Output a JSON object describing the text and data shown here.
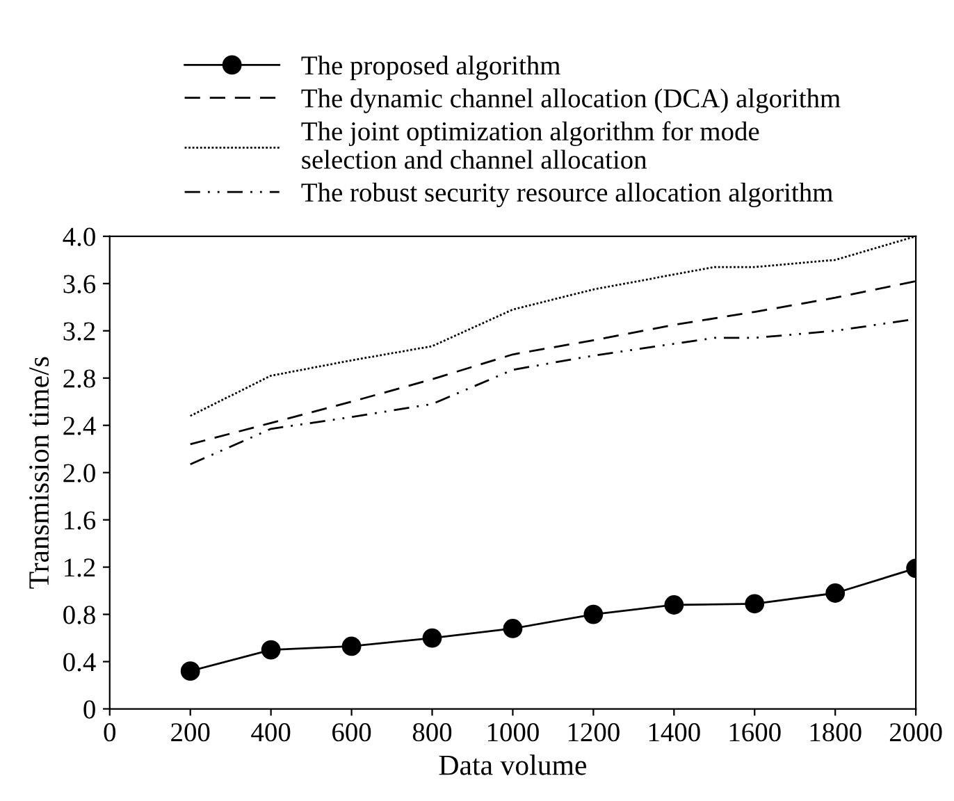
{
  "chart_data": {
    "type": "line",
    "xlabel": "Data volume",
    "ylabel": "Transmission time/s",
    "xlim": [
      0,
      2000
    ],
    "xticks": [
      0,
      200,
      400,
      600,
      800,
      1000,
      1200,
      1400,
      1600,
      1800,
      2000
    ],
    "ylim": [
      0,
      4.0
    ],
    "yticks": [
      {
        "value": 0,
        "label": "0"
      },
      0.4,
      0.8,
      1.2,
      1.6,
      {
        "value": 2,
        "label": "2.0"
      },
      2.4,
      2.8,
      3.2,
      3.6,
      {
        "value": 4,
        "label": "4.0"
      }
    ],
    "grid": false,
    "legend": "top",
    "series": [
      {
        "name": "The proposed algorithm",
        "color": "#000000",
        "marker": "circle",
        "line_style": "solid",
        "x": [
          200,
          400,
          600,
          800,
          1000,
          1200,
          1400,
          1600,
          1800,
          2000
        ],
        "values": [
          0.32,
          0.5,
          0.53,
          0.6,
          0.68,
          0.8,
          0.88,
          0.89,
          0.98,
          1.19
        ]
      },
      {
        "name": "The dynamic channel allocation (DCA) algorithm",
        "color": "#000000",
        "marker": "none",
        "line_style": "dashed",
        "x": [
          200,
          400,
          600,
          800,
          1000,
          1200,
          1400,
          1600,
          1800,
          2000
        ],
        "values": [
          2.24,
          2.42,
          2.6,
          2.79,
          3.0,
          3.12,
          3.25,
          3.36,
          3.48,
          3.62
        ]
      },
      {
        "name": "The joint optimization algorithm for mode\nselection and channel allocation",
        "color": "#000000",
        "marker": "none",
        "line_style": "dotted",
        "x": [
          200,
          400,
          600,
          800,
          1000,
          1200,
          1500,
          1600,
          1800,
          2000
        ],
        "values": [
          2.48,
          2.82,
          2.95,
          3.07,
          3.38,
          3.55,
          3.74,
          3.74,
          3.8,
          4.0
        ]
      },
      {
        "name": "The robust security resource allocation algorithm",
        "color": "#000000",
        "marker": "none",
        "line_style": "dashdot",
        "x": [
          200,
          400,
          600,
          800,
          1000,
          1200,
          1500,
          1600,
          1800,
          2000
        ],
        "values": [
          2.07,
          2.37,
          2.47,
          2.58,
          2.87,
          2.99,
          3.14,
          3.14,
          3.2,
          3.3
        ]
      }
    ]
  }
}
